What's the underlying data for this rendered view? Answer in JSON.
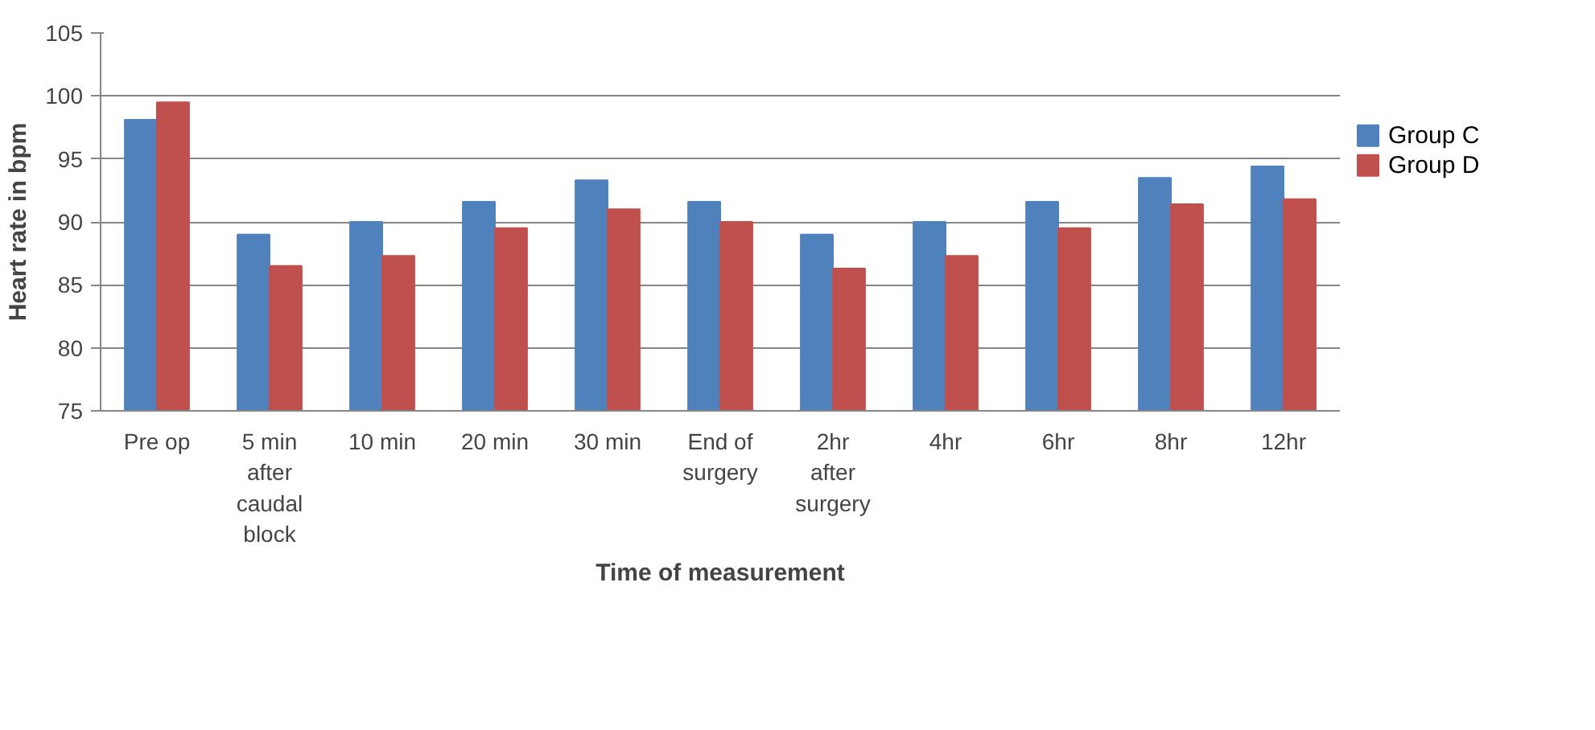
{
  "chart_data": {
    "type": "bar",
    "xlabel": "Time of measurement",
    "ylabel": "Heart rate in bpm",
    "categories": [
      "Pre op",
      "5 min after caudal block",
      "10 min",
      "20 min",
      "30 min",
      "End of surgery",
      "2hr after surgery",
      "4hr",
      "6hr",
      "8hr",
      "12hr"
    ],
    "series": [
      {
        "name": "Group C",
        "color": "#4f81bd",
        "values": [
          98.1,
          89.0,
          90.0,
          91.6,
          93.3,
          91.6,
          89.0,
          90.0,
          91.6,
          93.5,
          94.4
        ]
      },
      {
        "name": "Group D",
        "color": "#c0504d",
        "values": [
          99.5,
          86.5,
          87.3,
          89.5,
          91.0,
          90.0,
          86.3,
          87.3,
          89.5,
          91.4,
          91.8
        ]
      }
    ],
    "ylim": [
      75,
      105
    ],
    "yticks": [
      75,
      80,
      85,
      90,
      95,
      100,
      105
    ],
    "grid": "y",
    "legend": "right"
  }
}
